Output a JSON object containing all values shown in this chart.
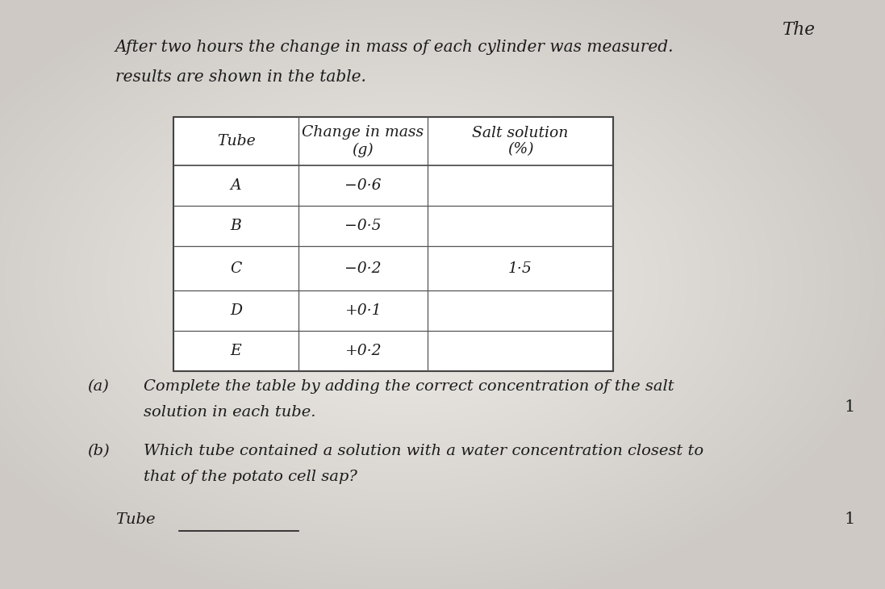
{
  "title_line1": "After two hours the change in mass of each cylinder was measured.",
  "title_line1_raised": "  The",
  "title_line2": "results are shown in the table.",
  "table_headers": [
    "Tube",
    "Change in mass\n(g)",
    "Salt solution\n(%)"
  ],
  "table_rows": [
    [
      "A",
      "−0·6",
      ""
    ],
    [
      "B",
      "−0·5",
      ""
    ],
    [
      "C",
      "−0·2",
      "1·5"
    ],
    [
      "D",
      "+0·1",
      ""
    ],
    [
      "E",
      "+0·2",
      ""
    ]
  ],
  "part_a_label": "(a)",
  "part_a_text1": "Complete the table by adding the correct concentration of the salt",
  "part_a_text2": "solution in each tube.",
  "part_a_mark": "1",
  "part_b_label": "(b)",
  "part_b_text1": "Which tube contained a solution with a water concentration closest to",
  "part_b_text2": "that of the potato cell sap?",
  "tube_label": "Tube",
  "tube_mark": "1",
  "font_color": "#1c1c1c",
  "title_fontsize": 14.5,
  "table_header_fontsize": 13.5,
  "table_body_fontsize": 13.5,
  "body_fontsize": 14.0,
  "mark_fontsize": 15.0,
  "bg_color": "#c8c5c0",
  "paper_color": "#e8e6e2"
}
